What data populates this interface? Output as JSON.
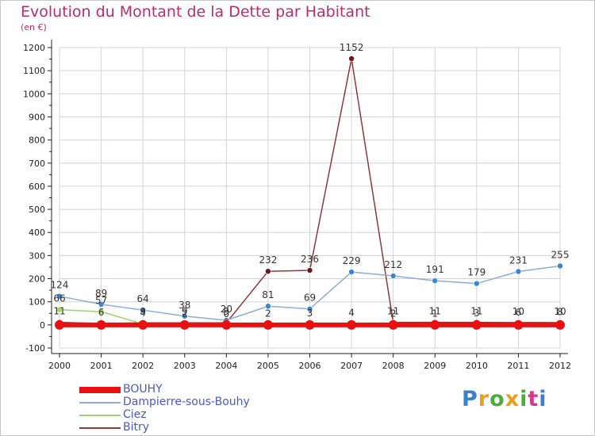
{
  "title": "Evolution du Montant de la Dette par Habitant",
  "subtitle": "(en €)",
  "logo": {
    "text": "Proxiti",
    "letter_colors": [
      "#3a7fd0",
      "#e8a020",
      "#4cae3a",
      "#e8a020",
      "#4cae3a",
      "#d63a8a",
      "#3a7fd0"
    ]
  },
  "colors": {
    "grid": "#d4d4d4",
    "axis": "#222222",
    "zero_line": "#888888",
    "title": "#c02a6a",
    "legend_text": "#4a58d0"
  },
  "chart_data": {
    "type": "line",
    "x": [
      "2000",
      "2001",
      "2002",
      "2003",
      "2004",
      "2005",
      "2006",
      "2007",
      "2008",
      "2009",
      "2010",
      "2011",
      "2012"
    ],
    "ylim": [
      -100,
      1200
    ],
    "yticks": [
      "-100",
      "0",
      "100",
      "200",
      "300",
      "400",
      "500",
      "600",
      "700",
      "800",
      "900",
      "1000",
      "1100",
      "1200"
    ],
    "grid": true,
    "legend_position": "bottom-left",
    "series": [
      {
        "name": "BOUHY",
        "color": "#e81010",
        "marker_color": "#e81010",
        "line_width": 6,
        "values": [
          0,
          0,
          0,
          0,
          0,
          0,
          0,
          0,
          0,
          0,
          0,
          0,
          0
        ],
        "labels": [
          "",
          "",
          "",
          "",
          "",
          "",
          "",
          "",
          "",
          "",
          "",
          "",
          ""
        ]
      },
      {
        "name": "Dampierre-sous-Bouhy",
        "color": "#88aede",
        "marker_color": "#3a86d6",
        "line_width": 1.5,
        "values": [
          124,
          89,
          64,
          38,
          20,
          81,
          69,
          229,
          212,
          191,
          179,
          231,
          255
        ],
        "labels": [
          "124",
          "89",
          "64",
          "38",
          "20",
          "81",
          "69",
          "229",
          "212",
          "191",
          "179",
          "231",
          "255"
        ]
      },
      {
        "name": "Ciez",
        "color": "#9ed36e",
        "marker_color": "#a8d856",
        "line_width": 1.5,
        "values": [
          66,
          57,
          4,
          2,
          0,
          2,
          3,
          4,
          2,
          1,
          3,
          6,
          8
        ],
        "labels": [
          "66",
          "57",
          "4",
          "2",
          "0",
          "2",
          "3",
          "4",
          "2",
          "1",
          "3",
          "6",
          "8"
        ]
      },
      {
        "name": "Bitry",
        "color": "#8c3a3a",
        "marker_color": "#6a1818",
        "line_width": 1.5,
        "values": [
          11,
          6,
          9,
          9,
          9,
          232,
          236,
          1152,
          11,
          11,
          11,
          10,
          10
        ],
        "labels": [
          "11",
          "6",
          "9",
          "9",
          "9",
          "232",
          "236",
          "1152",
          "11",
          "11",
          "11",
          "10",
          "10"
        ]
      }
    ]
  }
}
